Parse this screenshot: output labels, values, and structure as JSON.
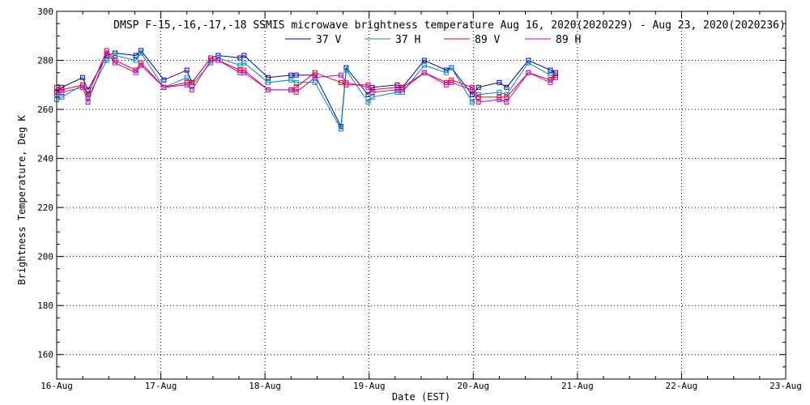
{
  "chart_data": {
    "type": "line",
    "title": "DMSP F-15,-16,-17,-18 SSMIS microwave brightness temperature Aug 16, 2020(2020229) - Aug 23, 2020(2020236)",
    "xlabel": "Date (EST)",
    "ylabel": "Brightness Temperature, Deg K",
    "xlim": [
      "2020-08-16T00:00",
      "2020-08-23T00:00"
    ],
    "ylim": [
      150,
      300
    ],
    "x_tick_labels": [
      "16-Aug",
      "17-Aug",
      "18-Aug",
      "19-Aug",
      "20-Aug",
      "21-Aug",
      "22-Aug",
      "23-Aug"
    ],
    "y_ticks": [
      160,
      180,
      200,
      220,
      240,
      260,
      280,
      300
    ],
    "grid": true,
    "legend_position": "top-center",
    "x": [
      "2020-08-16T00:00",
      "2020-08-16T01:12",
      "2020-08-16T06:00",
      "2020-08-16T07:12",
      "2020-08-16T11:31",
      "2020-08-16T13:26",
      "2020-08-16T18:14",
      "2020-08-16T19:26",
      "2020-08-17T00:43",
      "2020-08-17T06:00",
      "2020-08-17T07:12",
      "2020-08-17T11:31",
      "2020-08-17T13:12",
      "2020-08-17T18:14",
      "2020-08-17T19:12",
      "2020-08-18T00:43",
      "2020-08-18T06:00",
      "2020-08-18T07:12",
      "2020-08-18T11:31",
      "2020-08-18T17:31",
      "2020-08-18T18:43",
      "2020-08-18T23:46",
      "2020-08-19T00:43",
      "2020-08-19T06:29",
      "2020-08-19T07:41",
      "2020-08-19T12:43",
      "2020-08-19T17:46",
      "2020-08-19T18:58",
      "2020-08-19T23:46",
      "2020-08-20T01:12",
      "2020-08-20T06:00",
      "2020-08-20T07:41",
      "2020-08-20T12:43",
      "2020-08-20T17:46",
      "2020-08-20T18:58"
    ],
    "series": [
      {
        "name": "37 V",
        "color": "#0000aa",
        "values": [
          267,
          269,
          273,
          268,
          282,
          283,
          282,
          284,
          272,
          276,
          271,
          281,
          282,
          281,
          282,
          273,
          274,
          274,
          274,
          253,
          277,
          266,
          269,
          270,
          269,
          280,
          276,
          277,
          266,
          269,
          271,
          269,
          280,
          276,
          275
        ]
      },
      {
        "name": "37 H",
        "color": "#0088cc",
        "values": [
          264,
          265,
          270,
          265,
          280,
          282,
          280,
          283,
          269,
          273,
          270,
          279,
          281,
          278,
          279,
          271,
          272,
          271,
          271,
          252,
          276,
          263,
          265,
          267,
          267,
          278,
          275,
          277,
          263,
          266,
          267,
          266,
          279,
          274,
          273
        ]
      },
      {
        "name": "89 V",
        "color": "#ee0000",
        "values": [
          269,
          268,
          270,
          266,
          284,
          280,
          276,
          279,
          269,
          271,
          271,
          281,
          280,
          276,
          276,
          268,
          268,
          269,
          275,
          271,
          270,
          270,
          268,
          269,
          269,
          275,
          271,
          272,
          269,
          265,
          265,
          265,
          275,
          272,
          274
        ]
      },
      {
        "name": "89 H",
        "color": "#cc00cc",
        "values": [
          266,
          267,
          269,
          263,
          283,
          279,
          275,
          278,
          269,
          270,
          268,
          280,
          280,
          275,
          275,
          268,
          268,
          267,
          273,
          274,
          271,
          269,
          267,
          268,
          268,
          275,
          270,
          271,
          268,
          263,
          264,
          263,
          275,
          271,
          273
        ]
      }
    ]
  }
}
